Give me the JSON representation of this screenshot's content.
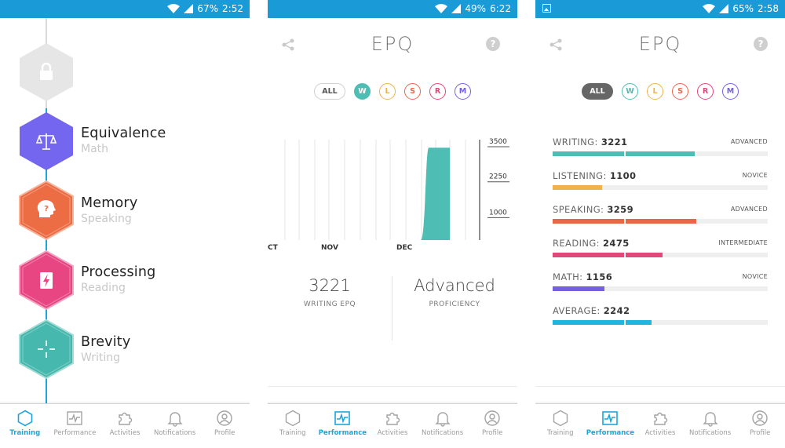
{
  "colors": {
    "status_bar": "#1a9bd8",
    "accent": "#1aa6dc",
    "writing": "#4ebdb3",
    "listening": "#f0b24c",
    "speaking": "#ea6648",
    "reading": "#e1497a",
    "math": "#7560e0",
    "average": "#21b5e2"
  },
  "panel1": {
    "status": {
      "battery": "67%",
      "time": "2:52"
    },
    "items": [
      {
        "title": "",
        "subtitle": "",
        "icon": "lock-icon",
        "color": "#e6e6e6",
        "locked": true
      },
      {
        "title": "Equivalence",
        "subtitle": "Math",
        "icon": "scale-icon",
        "color": "#7466ee"
      },
      {
        "title": "Memory",
        "subtitle": "Speaking",
        "icon": "head-question-icon",
        "color": "#ec6c43"
      },
      {
        "title": "Processing",
        "subtitle": "Reading",
        "icon": "bolt-icon",
        "color": "#e84583"
      },
      {
        "title": "Brevity",
        "subtitle": "Writing",
        "icon": "compress-icon",
        "color": "#47b8ad"
      }
    ]
  },
  "nav": {
    "training": "Training",
    "performance": "Performance",
    "activities": "Activities",
    "notifications": "Notifications",
    "profile": "Profile"
  },
  "panel2": {
    "status": {
      "battery": "49%",
      "time": "6:22"
    },
    "title": "EPQ",
    "filters": {
      "all": "ALL",
      "w": "W",
      "l": "L",
      "s": "S",
      "r": "R",
      "m": "M"
    },
    "kpi": {
      "value": "3221",
      "label": "WRITING EPQ",
      "level": "Advanced",
      "level_label": "PROFICIENCY"
    }
  },
  "chart_data": {
    "type": "area",
    "series": [
      {
        "values": [
          0,
          0,
          0,
          0,
          0,
          0,
          0,
          3221,
          3221
        ]
      }
    ],
    "x_tick_labels": [
      "CT",
      "NOV",
      "DEC"
    ],
    "y_tick_labels": [
      "3500",
      "2250",
      "1000"
    ],
    "ylim": [
      0,
      3500
    ],
    "grid": true,
    "y_axis_side": "right"
  },
  "panel3": {
    "status": {
      "battery": "65%",
      "time": "2:58"
    },
    "title": "EPQ",
    "filters": {
      "all": "ALL",
      "w": "W",
      "l": "L",
      "s": "S",
      "r": "R",
      "m": "M"
    },
    "rows": [
      {
        "name": "WRITING:",
        "value": "3221",
        "level": "ADVANCED",
        "fraction": 0.66,
        "color": "#4ebdb3"
      },
      {
        "name": "LISTENING:",
        "value": "1100",
        "level": "NOVICE",
        "fraction": 0.23,
        "color": "#f0b24c"
      },
      {
        "name": "SPEAKING:",
        "value": "3259",
        "level": "ADVANCED",
        "fraction": 0.67,
        "color": "#ea6648"
      },
      {
        "name": "READING:",
        "value": "2475",
        "level": "INTERMEDIATE",
        "fraction": 0.51,
        "color": "#e1497a"
      },
      {
        "name": "MATH:",
        "value": "1156",
        "level": "NOVICE",
        "fraction": 0.24,
        "color": "#7560e0"
      },
      {
        "name": "AVERAGE:",
        "value": "2242",
        "level": "",
        "fraction": 0.46,
        "color": "#21b5e2"
      }
    ]
  }
}
